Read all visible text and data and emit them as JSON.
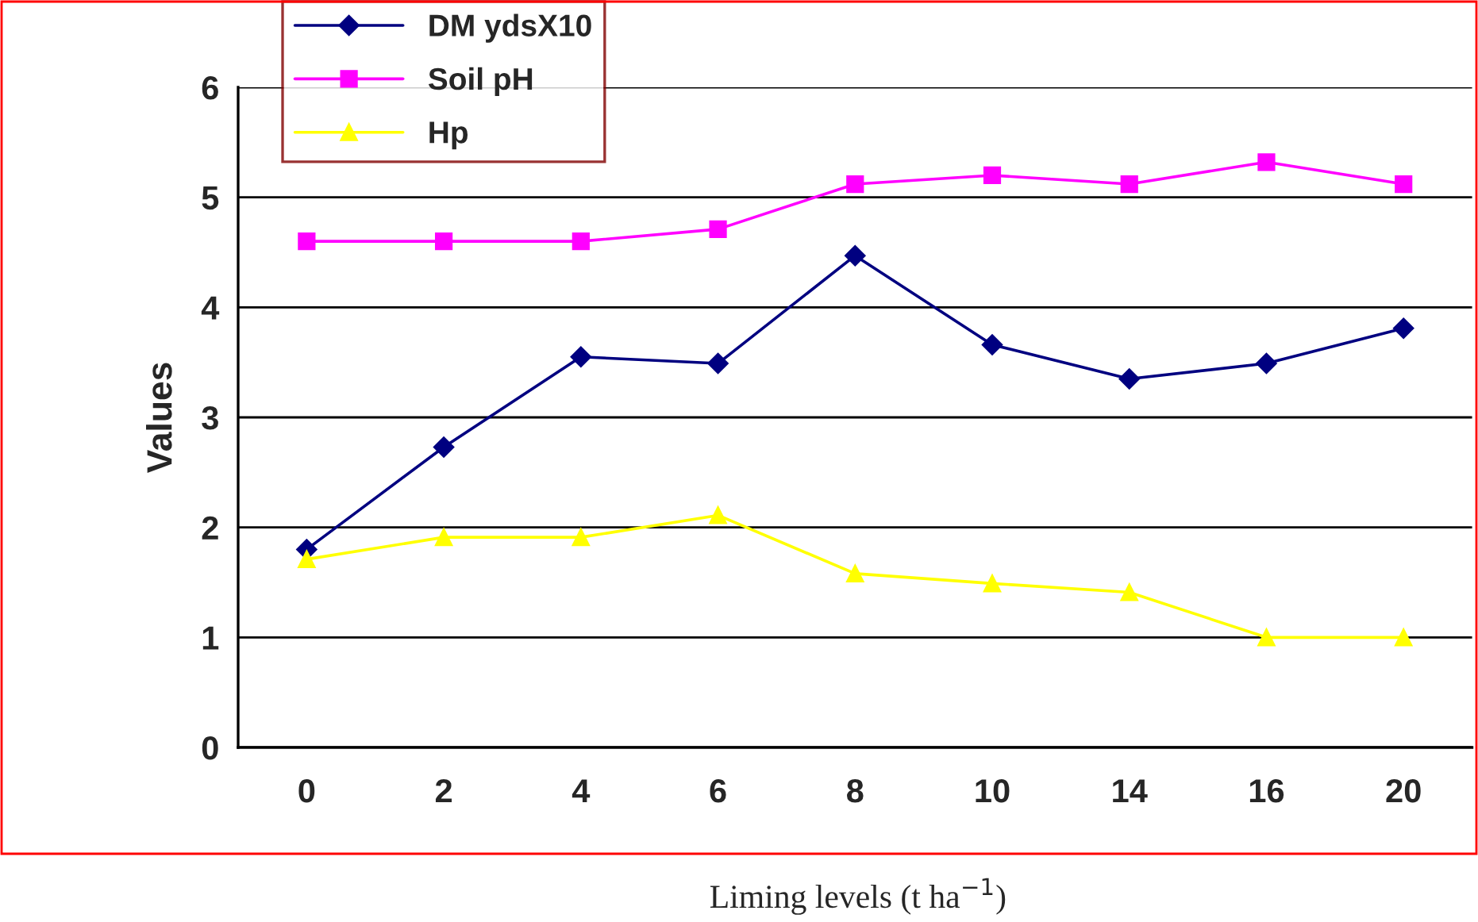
{
  "chart_data": {
    "type": "line",
    "xlabel": "Liming levels (t ha$^{−1}$)",
    "ylabel": "Values",
    "categories": [
      "0",
      "2",
      "4",
      "6",
      "8",
      "10",
      "14",
      "16",
      "20"
    ],
    "ylim": [
      0,
      6
    ],
    "yticks": [
      0,
      1,
      2,
      3,
      4,
      5,
      6
    ],
    "grid": "y",
    "legend": "top left",
    "line_style": "solid",
    "series": [
      {
        "name": "DM ydsX10",
        "color": "#000080",
        "marker": "diamond",
        "values": [
          1.8,
          2.73,
          3.55,
          3.49,
          4.47,
          3.66,
          3.35,
          3.49,
          3.81
        ]
      },
      {
        "name": "Soil pH",
        "color": "#ff00ff",
        "marker": "square",
        "values": [
          4.6,
          4.6,
          4.6,
          4.71,
          5.12,
          5.2,
          5.12,
          5.32,
          5.12
        ]
      },
      {
        "name": "Hp",
        "color": "#ffff00",
        "marker": "triangle",
        "values": [
          1.71,
          1.91,
          1.91,
          2.11,
          1.58,
          1.49,
          1.41,
          1.0,
          1.0
        ]
      }
    ]
  }
}
